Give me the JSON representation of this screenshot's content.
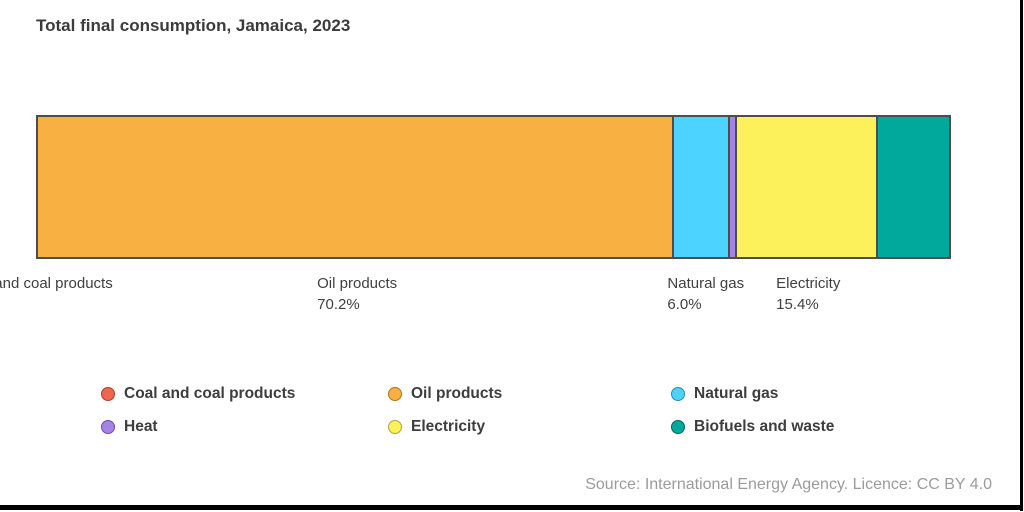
{
  "title": "Total final consumption, Jamaica, 2023",
  "source": "Source: International Energy Agency. Licence: CC BY 4.0",
  "chart_data": {
    "type": "bar",
    "subtype": "horizontal-stacked-100percent",
    "title": "Total final consumption, Jamaica, 2023",
    "unit": "% share of total final consumption",
    "categories": [
      "Coal and coal products",
      "Oil products",
      "Natural gas",
      "Heat",
      "Electricity",
      "Biofuels and waste"
    ],
    "values": [
      0.0,
      70.2,
      6.0,
      0.5,
      15.4,
      7.9
    ],
    "labeled_values": {
      "Oil products": "70.2%",
      "Natural gas": "6.0%",
      "Electricity": "15.4%"
    },
    "estimated_values": [
      "Coal and coal products",
      "Heat",
      "Biofuels and waste"
    ],
    "legend_position": "bottom",
    "segments": [
      {
        "id": "coal",
        "name": "Coal and coal products",
        "value": 0.0,
        "color": "#F0654D",
        "show_label": true,
        "pct_label": null
      },
      {
        "id": "oil",
        "name": "Oil products",
        "value": 70.2,
        "color": "#F9B042",
        "show_label": true,
        "pct_label": "70.2%"
      },
      {
        "id": "natural-gas",
        "name": "Natural gas",
        "value": 6.0,
        "color": "#4DD3FF",
        "show_label": true,
        "pct_label": "6.0%"
      },
      {
        "id": "heat",
        "name": "Heat",
        "value": 0.5,
        "color": "#A584E4",
        "show_label": false,
        "pct_label": null
      },
      {
        "id": "electricity",
        "name": "Electricity",
        "value": 15.4,
        "color": "#FDF15B",
        "show_label": true,
        "pct_label": "15.4%"
      },
      {
        "id": "biofuels",
        "name": "Biofuels and waste",
        "value": 7.9,
        "color": "#00A99B",
        "show_label": false,
        "pct_label": null
      }
    ]
  },
  "legend": {
    "items": [
      {
        "id": "coal",
        "label": "Coal and coal products",
        "color": "#F0654D",
        "stroke": "#a8402c"
      },
      {
        "id": "oil",
        "label": "Oil products",
        "color": "#F9B042",
        "stroke": "#a8751f"
      },
      {
        "id": "natural-gas",
        "label": "Natural gas",
        "color": "#4DD3FF",
        "stroke": "#2f89ad"
      },
      {
        "id": "heat",
        "label": "Heat",
        "color": "#A584E4",
        "stroke": "#6a4cae"
      },
      {
        "id": "electricity",
        "label": "Electricity",
        "color": "#FDF15B",
        "stroke": "#aaa23a"
      },
      {
        "id": "biofuels",
        "label": "Biofuels and waste",
        "color": "#00A99B",
        "stroke": "#00655c"
      }
    ]
  }
}
